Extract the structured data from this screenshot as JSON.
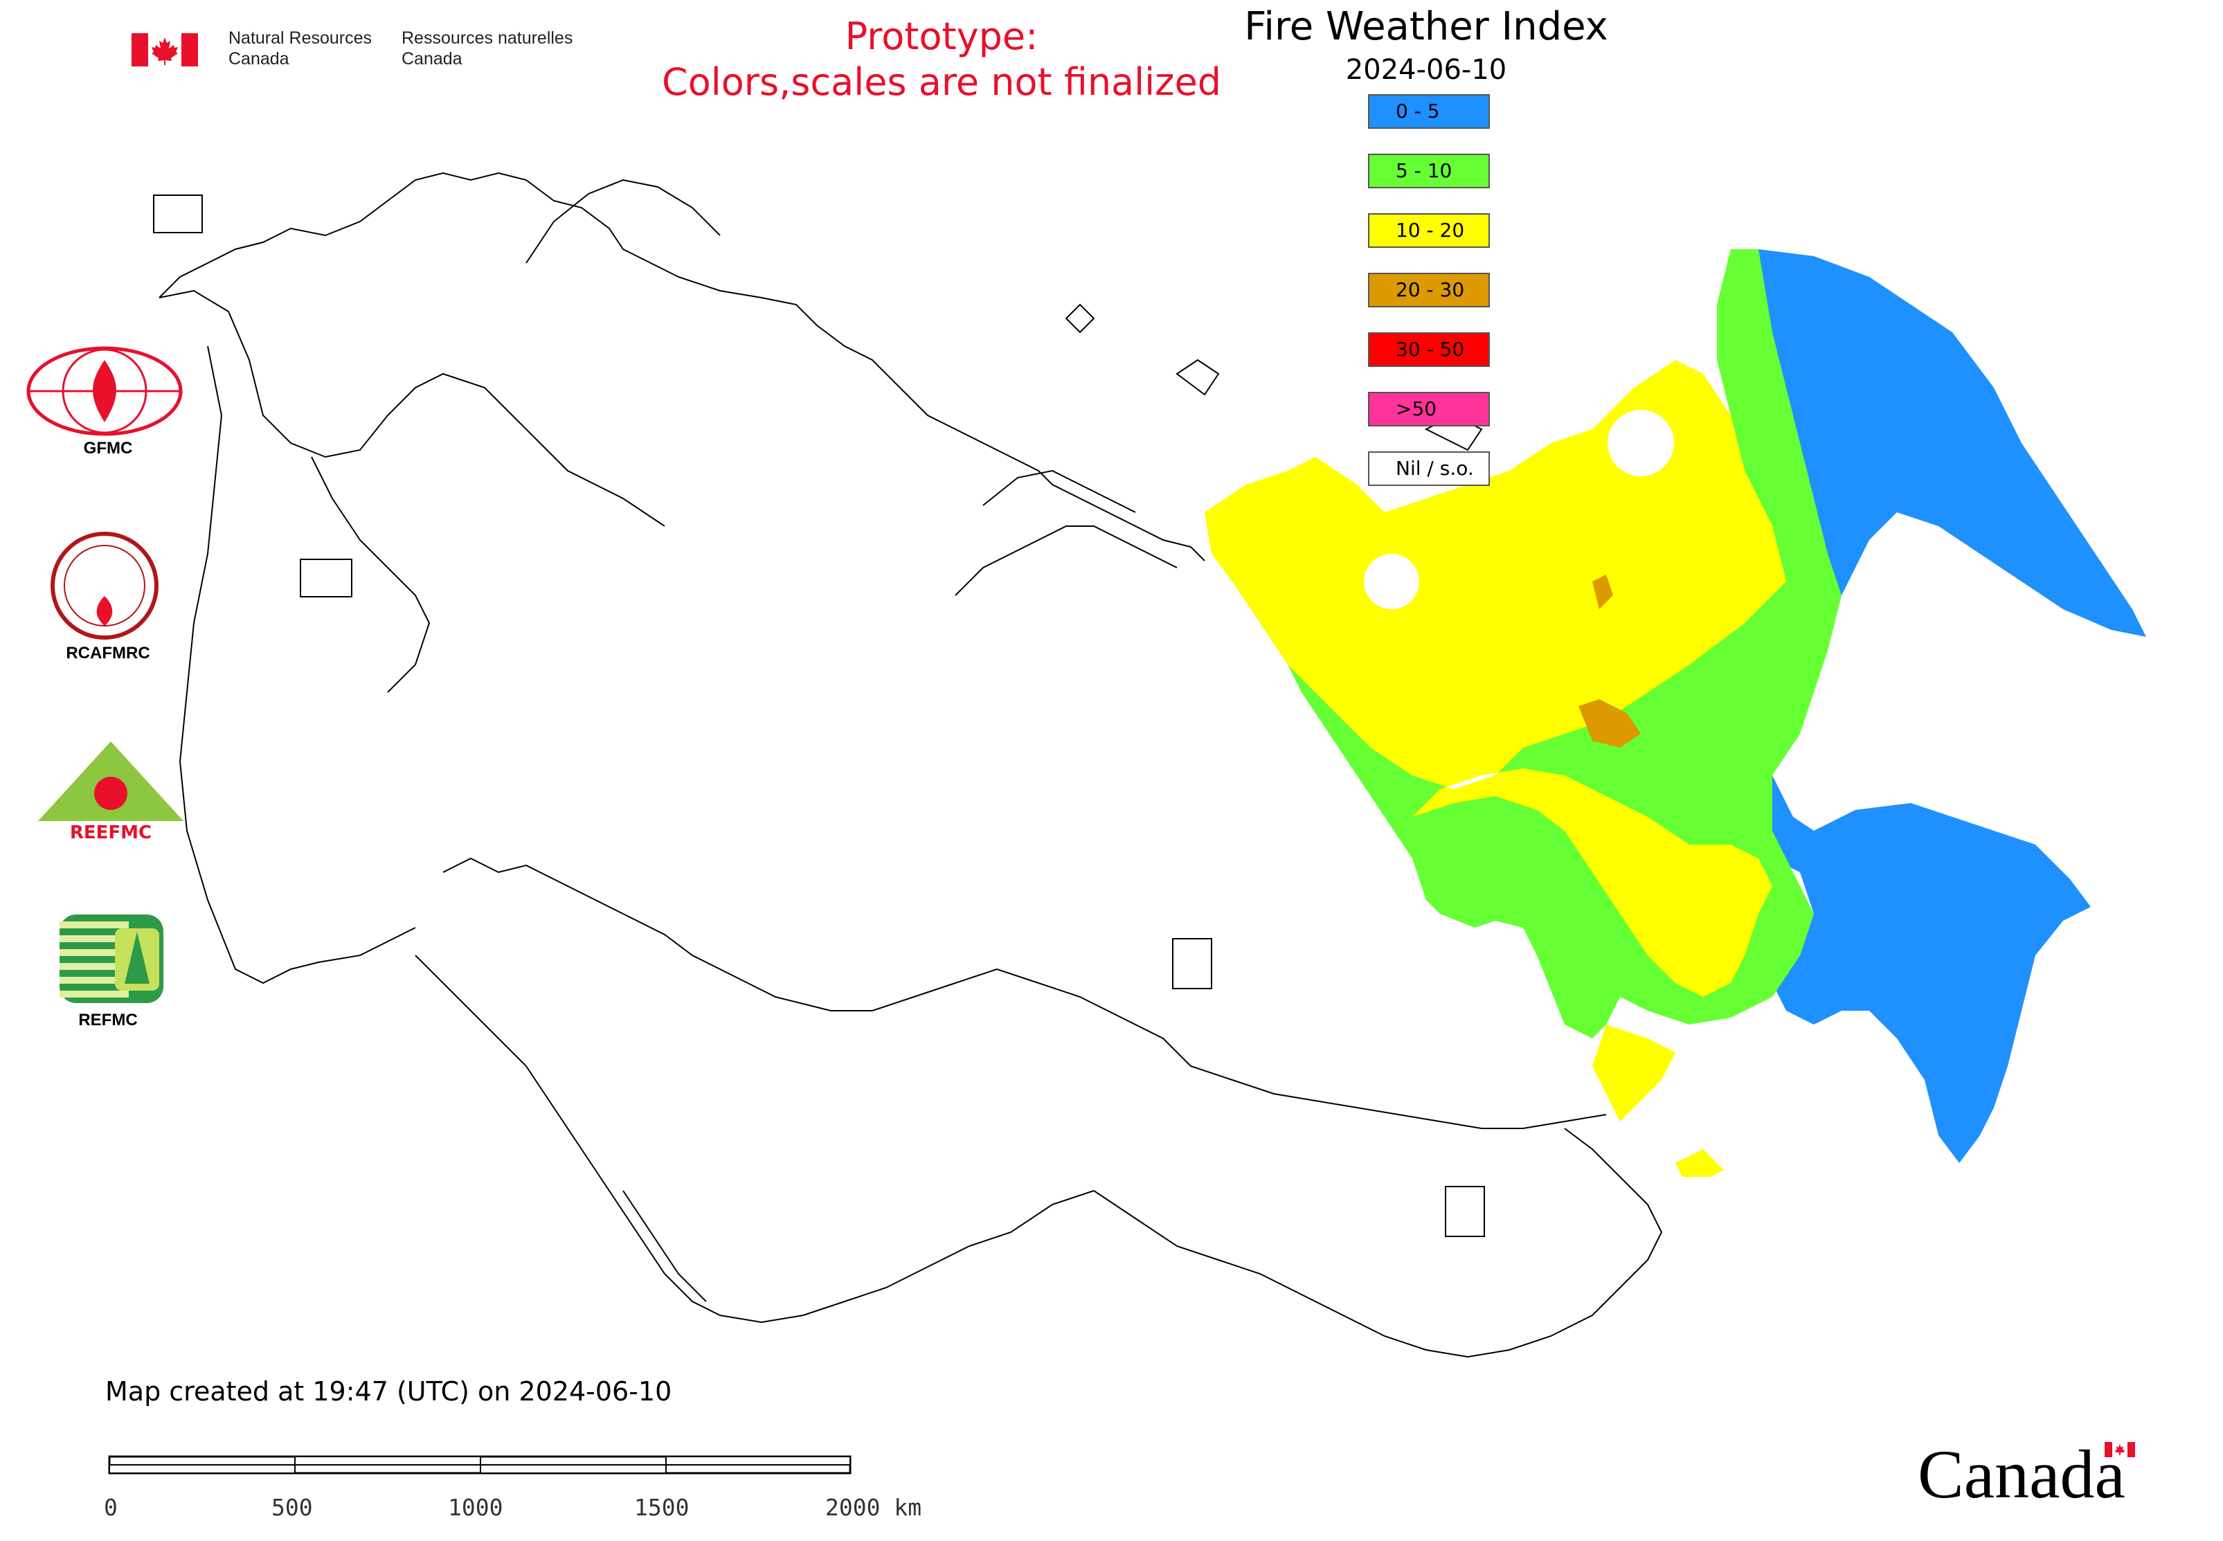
{
  "header": {
    "nrcan_en_line1": "Natural Resources",
    "nrcan_en_line2": "Canada",
    "nrcan_fr_line1": "Ressources naturelles",
    "nrcan_fr_line2": "Canada",
    "prototype_line1": "Prototype:",
    "prototype_line2": "Colors,scales are not finalized",
    "title": "Fire Weather Index",
    "date": "2024-06-10"
  },
  "legend": [
    {
      "label": "0 - 5",
      "color": "#1e90ff"
    },
    {
      "label": "5 - 10",
      "color": "#66ff33"
    },
    {
      "label": "10 - 20",
      "color": "#ffff00"
    },
    {
      "label": "20 - 30",
      "color": "#dd9900"
    },
    {
      "label": "30 - 50",
      "color": "#ff0000"
    },
    {
      "label": ">50",
      "color": "#ff3399"
    },
    {
      "label": "Nil / s.o.",
      "color": "#ffffff"
    }
  ],
  "partners": {
    "gfmc": "GFMC",
    "rcafmrc": "RCAFMRC",
    "reefmc_logo_text": "REEFMC",
    "refmc": "REFMC"
  },
  "footer": {
    "created": "Map created at 19:47 (UTC) on 2024-06-10",
    "scale_ticks": [
      "0",
      "500",
      "1000",
      "1500",
      "2000 km"
    ],
    "wordmark": "Canada"
  },
  "colors": {
    "proto_text": "#e8102a",
    "border_line": "#000000",
    "canada_red": "#e8102a"
  }
}
